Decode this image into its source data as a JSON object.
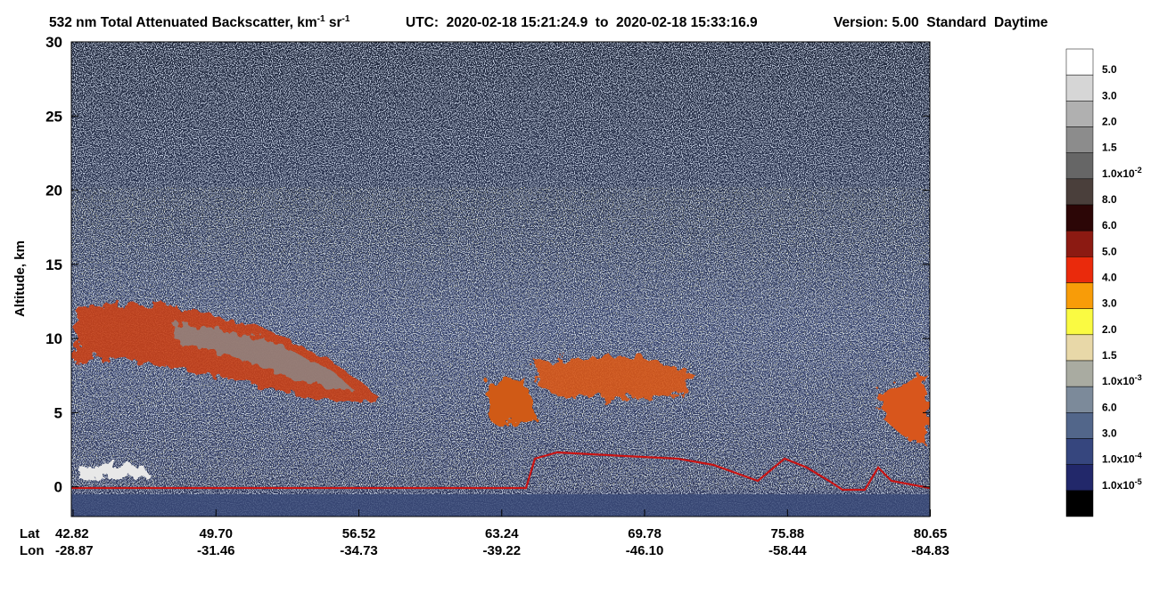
{
  "chart_data": {
    "type": "heatmap",
    "title": "532 nm Total Attenuated Backscatter, km",
    "title_sup": "-1",
    "title_unit2": " sr",
    "title_sup2": "-1",
    "utc": "UTC:  2020-02-18 15:21:24.9  to  2020-02-18 15:33:16.9",
    "version": "Version: 5.00  Standard  Daytime",
    "ylabel": "Altitude, km",
    "ylim": [
      -2,
      30
    ],
    "yticks": [
      0,
      5,
      10,
      15,
      20,
      25,
      30
    ],
    "x_row_labels": [
      "Lat",
      "Lon"
    ],
    "categories": [
      "42.82",
      "49.70",
      "56.52",
      "63.24",
      "69.78",
      "75.88",
      "80.65"
    ],
    "lon": [
      "-28.87",
      "-31.46",
      "-34.73",
      "-39.22",
      "-46.10",
      "-58.44",
      "-84.83"
    ],
    "colorbar": {
      "colors": [
        "#ffffff",
        "#d6d6d6",
        "#b0b0b0",
        "#8c8c8c",
        "#666666",
        "#4a3f3b",
        "#2c0606",
        "#8c1a12",
        "#ea2a0c",
        "#f89c08",
        "#fafa42",
        "#e8d8a8",
        "#a9aba1",
        "#7c8a9a",
        "#52668a",
        "#36467e",
        "#22286a",
        "#000000"
      ],
      "labels": [
        {
          "text": "5.0"
        },
        {
          "text": "3.0"
        },
        {
          "text": "2.0"
        },
        {
          "text": "1.5"
        },
        {
          "text": "1.0x10",
          "sup": "-2"
        },
        {
          "text": "8.0"
        },
        {
          "text": "6.0"
        },
        {
          "text": "5.0"
        },
        {
          "text": "4.0"
        },
        {
          "text": "3.0"
        },
        {
          "text": "2.0"
        },
        {
          "text": "1.5"
        },
        {
          "text": "1.0x10",
          "sup": "-3"
        },
        {
          "text": "6.0"
        },
        {
          "text": "3.0"
        },
        {
          "text": "1.0x10",
          "sup": "-4"
        },
        {
          "text": "1.0x10",
          "sup": "-5"
        }
      ]
    }
  }
}
